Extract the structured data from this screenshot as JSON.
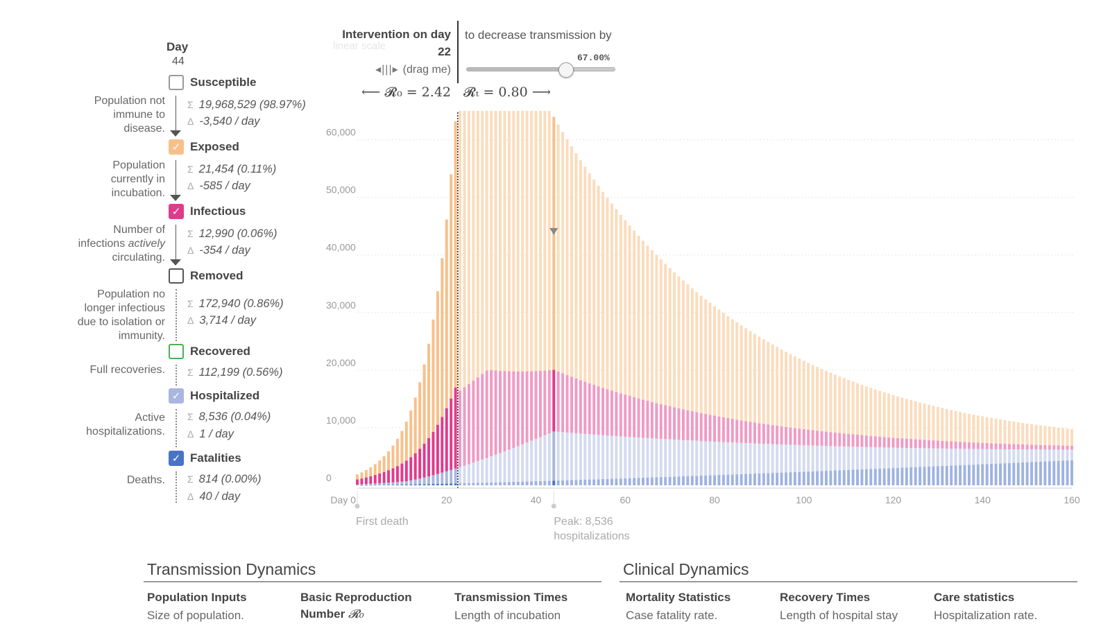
{
  "legend": {
    "day_title": "Day",
    "day_value": "44",
    "compartments": [
      {
        "name": "Susceptible",
        "checked": false,
        "color": "#999999",
        "desc_html": "Population not<br>immune to<br>disease.",
        "stats": [
          {
            "sym": "Σ",
            "text": "19,968,529 (98.97%)"
          },
          {
            "sym": "Δ",
            "text": "-3,540 / day"
          }
        ],
        "line": "solid"
      },
      {
        "name": "Exposed",
        "checked": true,
        "color": "#f7c08a",
        "desc_html": "Population<br>currently in<br>incubation.",
        "stats": [
          {
            "sym": "Σ",
            "text": "21,454 (0.11%)"
          },
          {
            "sym": "Δ",
            "text": "-585 / day"
          }
        ],
        "line": "solid"
      },
      {
        "name": "Infectious",
        "checked": true,
        "color": "#e23a8b",
        "desc_html": "Number of<br>infections <em>actively</em><br>circulating.",
        "stats": [
          {
            "sym": "Σ",
            "text": "12,990 (0.06%)"
          },
          {
            "sym": "Δ",
            "text": "-354 / day"
          }
        ],
        "line": "solid"
      },
      {
        "name": "Removed",
        "checked": false,
        "color": "#555555",
        "desc_html": "Population no<br>longer infectious<br>due to isolation or<br>immunity.",
        "stats": [
          {
            "sym": "Σ",
            "text": "172,940 (0.86%)"
          },
          {
            "sym": "Δ",
            "text": "3,714 / day"
          }
        ],
        "line": "dotted"
      },
      {
        "name": "Recovered",
        "checked": false,
        "color": "#4caf50",
        "desc_html": "Full recoveries.",
        "stats": [
          {
            "sym": "Σ",
            "text": "112,199 (0.56%)"
          }
        ],
        "line": "dotted"
      },
      {
        "name": "Hospitalized",
        "checked": true,
        "color": "#a9b6df",
        "desc_html": "Active<br>hospitalizations.",
        "stats": [
          {
            "sym": "Σ",
            "text": "8,536 (0.04%)"
          },
          {
            "sym": "Δ",
            "text": "1 / day"
          }
        ],
        "line": "dotted"
      },
      {
        "name": "Fatalities",
        "checked": true,
        "color": "#4a73c6",
        "desc_html": "Deaths.",
        "stats": [
          {
            "sym": "Σ",
            "text": "814 (0.00%)"
          },
          {
            "sym": "Δ",
            "text": "40 / day"
          }
        ],
        "line": "dotted"
      }
    ]
  },
  "intervention": {
    "label": "Intervention on day",
    "day": "22",
    "faded_text": "linear scale",
    "drag_hint": "(drag me)",
    "r0_text": "⟵ 𝓡₀ = 2.42",
    "rt_text": "𝓡ₜ = 0.80 ⟶",
    "decrease_text": "to decrease transmission by",
    "slider_value_label": "67.00%",
    "slider_fraction": 0.67
  },
  "chart_data": {
    "type": "bar",
    "stacked": true,
    "x_start": 0,
    "x_end": 160,
    "intervention_day": 22,
    "selected_day": 44,
    "ylim": [
      0,
      62000
    ],
    "yticks": [
      0,
      10000,
      20000,
      30000,
      40000,
      50000,
      60000
    ],
    "ytick_labels": [
      "0",
      "10,000",
      "20,000",
      "30,000",
      "40,000",
      "50,000",
      "60,000"
    ],
    "xticks": [
      0,
      20,
      40,
      60,
      80,
      100,
      120,
      140,
      160
    ],
    "xtick_labels": [
      "Day 0",
      "20",
      "40",
      "60",
      "80",
      "100",
      "120",
      "140",
      "160"
    ],
    "grid": true,
    "colors": {
      "fatalities": "#4a73c6",
      "hospitalized": "#a9b6df",
      "infectious": "#e23a8b",
      "exposed": "#f7c08a"
    },
    "faded_colors": {
      "fatalities": "#9fb3e1",
      "hospitalized": "#d4dbef",
      "infectious": "#f09ac4",
      "exposed": "#fbdcbc"
    },
    "annotations": [
      {
        "day": 0,
        "text_lines": [
          "First death"
        ]
      },
      {
        "day": 44,
        "text_lines": [
          "Peak: 8,536",
          "hospitalizations"
        ]
      }
    ]
  },
  "sections": {
    "transmission_title": "Transmission Dynamics",
    "clinical_title": "Clinical Dynamics",
    "params": [
      {
        "title": "Population Inputs",
        "sub": "Size of population."
      },
      {
        "title": "Basic Reproduction",
        "title2": "Number",
        "math": "𝓡₀",
        "sub": ""
      },
      {
        "title": "Transmission Times",
        "sub": "Length of incubation"
      },
      {
        "title": "Mortality Statistics",
        "sub": "Case fatality rate."
      },
      {
        "title": "Recovery Times",
        "sub": "Length of hospital stay"
      },
      {
        "title": "Care statistics",
        "sub": "Hospitalization rate."
      }
    ]
  }
}
